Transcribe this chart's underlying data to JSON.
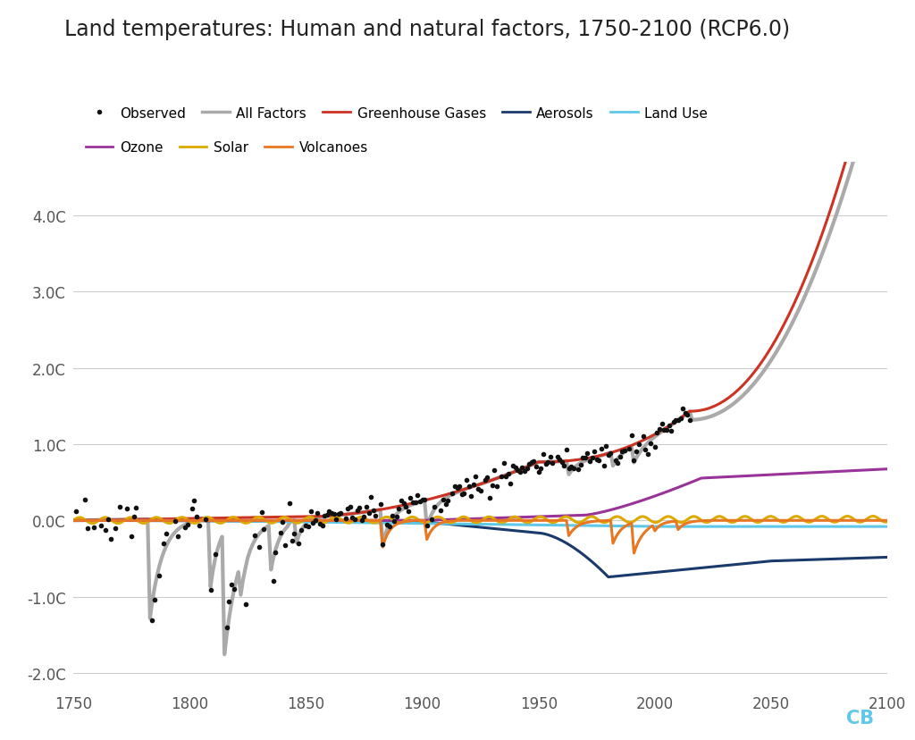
{
  "title": "Land temperatures: Human and natural factors, 1750-2100 (RCP6.0)",
  "title_fontsize": 17,
  "title_color": "#222222",
  "background_color": "#ffffff",
  "xlim": [
    1750,
    2100
  ],
  "ylim": [
    -2.2,
    4.7
  ],
  "yticks": [
    -2.0,
    -1.0,
    0.0,
    1.0,
    2.0,
    3.0,
    4.0
  ],
  "ytick_labels": [
    "-2.0C",
    "-1.0C",
    "0.0C",
    "1.0C",
    "2.0C",
    "3.0C",
    "4.0C"
  ],
  "xticks": [
    1750,
    1800,
    1850,
    1900,
    1950,
    2000,
    2050,
    2100
  ],
  "grid_color": "#cccccc",
  "color_all_factors": "#aaaaaa",
  "color_ghg": "#cc3322",
  "color_aerosols": "#1a3a6b",
  "color_land_use": "#5ec8e8",
  "color_ozone": "#993399",
  "color_solar": "#ddaa00",
  "color_volcanoes": "#e87722",
  "color_observed": "#111111",
  "watermark": "CB",
  "watermark_color": "#5ec8e8"
}
